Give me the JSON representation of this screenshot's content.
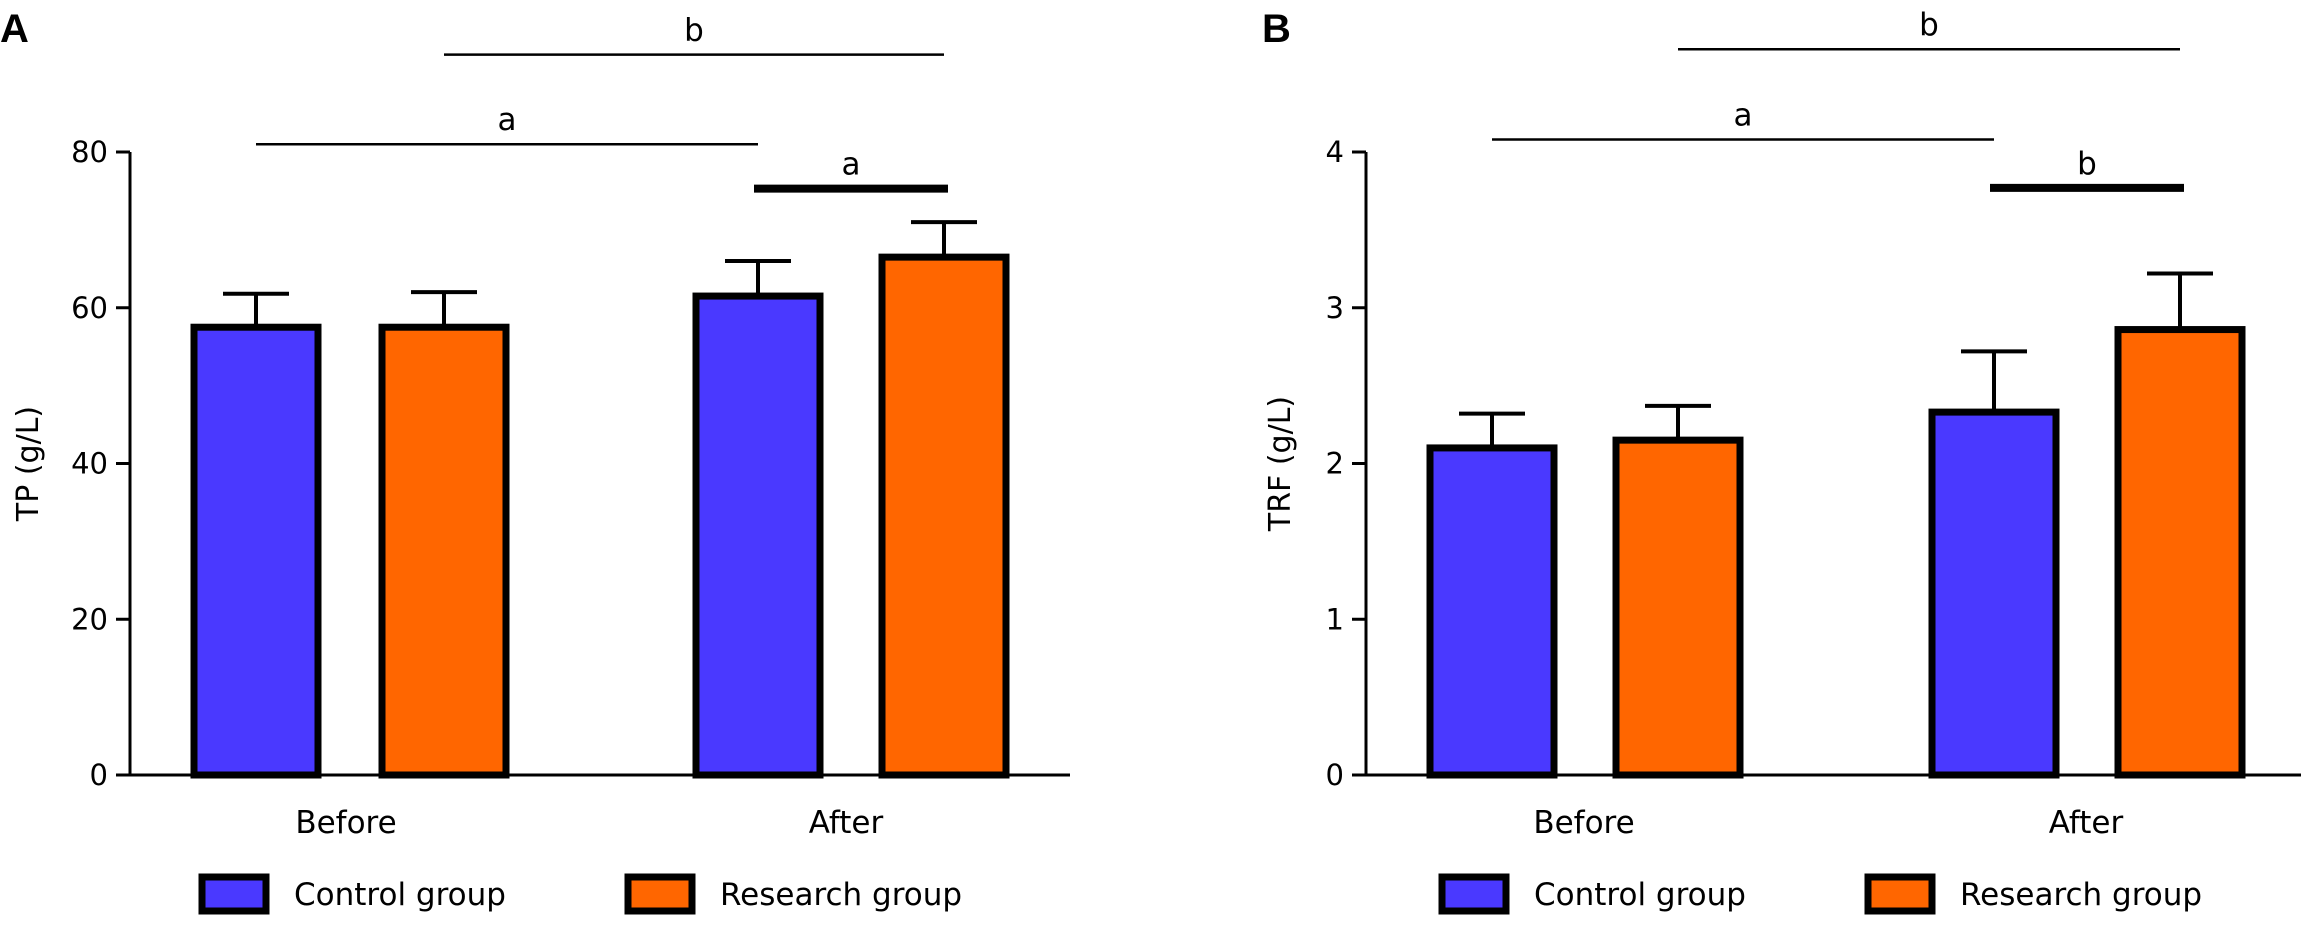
{
  "colors": {
    "control": "#4A39FF",
    "research": "#FF6600",
    "stroke": "#000000"
  },
  "chart_data": [
    {
      "panel": "A",
      "type": "bar",
      "categories": [
        "Before",
        "After"
      ],
      "ylabel": "TP (g/L)",
      "ylim": [
        0,
        80
      ],
      "yticks": [
        {
          "value": 0,
          "label": "0"
        },
        {
          "value": 20,
          "label": "20"
        },
        {
          "value": 40,
          "label": "40"
        },
        {
          "value": 60,
          "label": "60"
        },
        {
          "value": 80,
          "label": "80"
        }
      ],
      "series": [
        {
          "name": "Control group",
          "values": [
            57.5,
            61.5
          ],
          "errors": [
            4.3,
            4.5
          ]
        },
        {
          "name": "Research group",
          "values": [
            57.5,
            66.5
          ],
          "errors": [
            4.5,
            4.5
          ]
        }
      ],
      "annotations": [
        {
          "label": "a",
          "from": [
            0,
            0
          ],
          "to": [
            1,
            0
          ],
          "y": 81.0,
          "weight": "thin"
        },
        {
          "label": "b",
          "from": [
            0,
            1
          ],
          "to": [
            1,
            1
          ],
          "y": 92.5,
          "weight": "thin"
        },
        {
          "label": "a",
          "from": [
            1,
            0
          ],
          "to": [
            1,
            1
          ],
          "y": 75.3,
          "weight": "thick"
        }
      ]
    },
    {
      "panel": "B",
      "type": "bar",
      "categories": [
        "Before",
        "After"
      ],
      "ylabel": "TRF (g/L)",
      "ylim": [
        0,
        4
      ],
      "yticks": [
        {
          "value": 0,
          "label": "0"
        },
        {
          "value": 1,
          "label": "1"
        },
        {
          "value": 2,
          "label": "2"
        },
        {
          "value": 3,
          "label": "3"
        },
        {
          "value": 4,
          "label": "4"
        }
      ],
      "series": [
        {
          "name": "Control group",
          "values": [
            2.1,
            2.33
          ],
          "errors": [
            0.22,
            0.39
          ]
        },
        {
          "name": "Research group",
          "values": [
            2.15,
            2.86
          ],
          "errors": [
            0.22,
            0.36
          ]
        }
      ],
      "annotations": [
        {
          "label": "a",
          "from": [
            0,
            0
          ],
          "to": [
            1,
            0
          ],
          "y": 4.08,
          "weight": "thin"
        },
        {
          "label": "b",
          "from": [
            0,
            1
          ],
          "to": [
            1,
            1
          ],
          "y": 4.66,
          "weight": "thin"
        },
        {
          "label": "b",
          "from": [
            1,
            0
          ],
          "to": [
            1,
            1
          ],
          "y": 3.77,
          "weight": "thick"
        }
      ]
    }
  ]
}
